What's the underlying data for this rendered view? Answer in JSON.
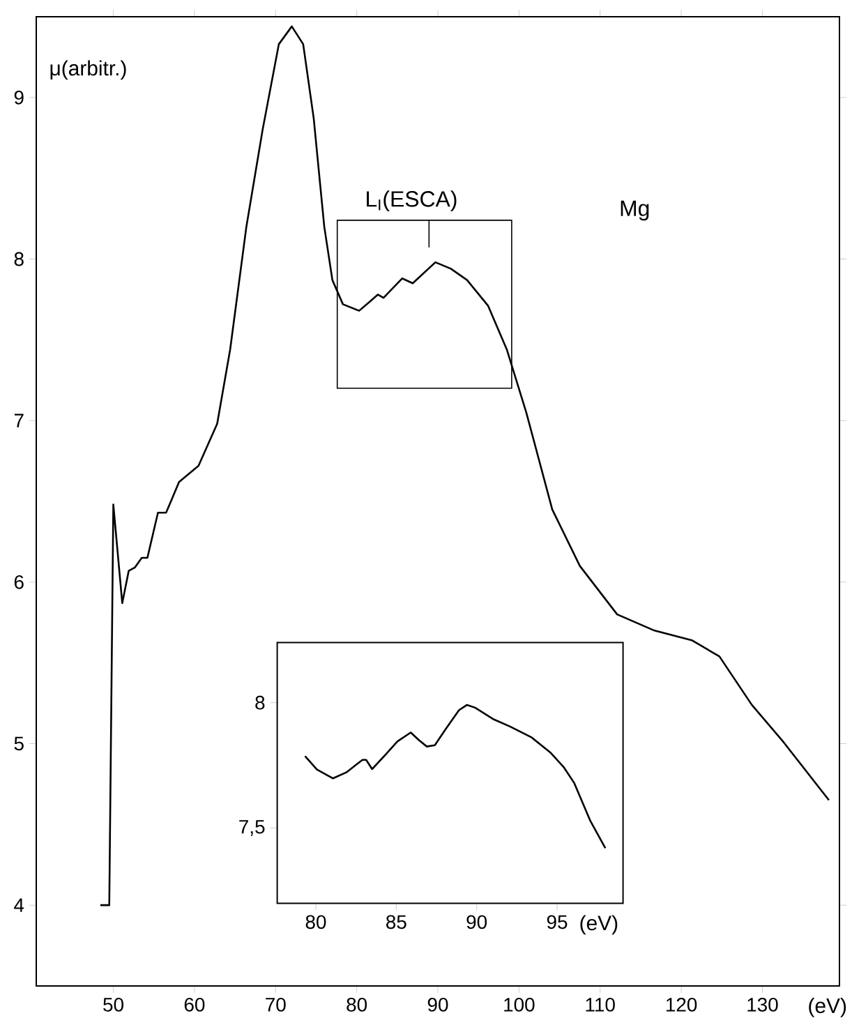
{
  "chart_data": [
    {
      "type": "line",
      "xlabel": "(eV)",
      "ylabel": "μ(arbitr.)",
      "xlim": [
        40.5,
        139.5
      ],
      "ylim": [
        3.5,
        9.5
      ],
      "xticks": [
        50,
        60,
        70,
        80,
        90,
        100,
        110,
        120,
        130
      ],
      "yticks": [
        4,
        5,
        6,
        7,
        8,
        9
      ],
      "grid": false,
      "annotations": [
        "L$_{I}$(ESCA)",
        "Mg"
      ],
      "series": [
        {
          "color": "#000000",
          "x": [
            48.4,
            49.5,
            50.0,
            51.1,
            51.9,
            52.65,
            53.5,
            54.2,
            55.5,
            56.5,
            57.1,
            58.1,
            60.5,
            62.8,
            64.4,
            66.4,
            68.4,
            70.4,
            72.0,
            73.4,
            74.7,
            76.0,
            77.0,
            78.3,
            80.3,
            81.7,
            82.6,
            83.3,
            85.6,
            86.9,
            89.7,
            91.6,
            93.6,
            96.2,
            98.5,
            100.9,
            104.1,
            107.5,
            112.1,
            116.7,
            121.3,
            124.7,
            128.7,
            132.6,
            138.2
          ],
          "values": [
            4.0,
            4.0,
            6.48,
            5.87,
            6.07,
            6.09,
            6.15,
            6.15,
            6.43,
            6.43,
            6.5,
            6.62,
            6.72,
            6.98,
            7.44,
            8.2,
            8.8,
            9.33,
            9.44,
            9.33,
            8.87,
            8.2,
            7.87,
            7.72,
            7.68,
            7.74,
            7.78,
            7.76,
            7.88,
            7.85,
            7.98,
            7.94,
            7.87,
            7.71,
            7.44,
            7.05,
            6.45,
            6.1,
            5.8,
            5.7,
            5.64,
            5.54,
            5.24,
            5.01,
            4.65
          ]
        }
      ]
    },
    {
      "type": "line",
      "xlabel": "(eV)",
      "xlim": [
        77.6,
        99.1
      ],
      "ylim": [
        7.2,
        8.24
      ],
      "xticks": [
        80,
        85,
        90,
        95
      ],
      "yticks": [
        {
          "value": 7.5,
          "label": "7,5"
        },
        8
      ],
      "grid": false,
      "series": [
        {
          "color": "#000000",
          "x": [
            79.33,
            80.07,
            81.07,
            81.9,
            82.9,
            83.13,
            83.5,
            84.4,
            85.07,
            85.9,
            86.4,
            86.9,
            87.4,
            88.07,
            88.9,
            89.4,
            89.9,
            91.07,
            92.07,
            93.4,
            94.57,
            95.4,
            96.07,
            97.07,
            98.0
          ],
          "values": [
            7.787,
            7.733,
            7.698,
            7.722,
            7.772,
            7.772,
            7.735,
            7.797,
            7.845,
            7.881,
            7.851,
            7.825,
            7.83,
            7.894,
            7.97,
            7.991,
            7.98,
            7.933,
            7.905,
            7.862,
            7.802,
            7.744,
            7.679,
            7.528,
            7.42
          ]
        }
      ]
    }
  ]
}
